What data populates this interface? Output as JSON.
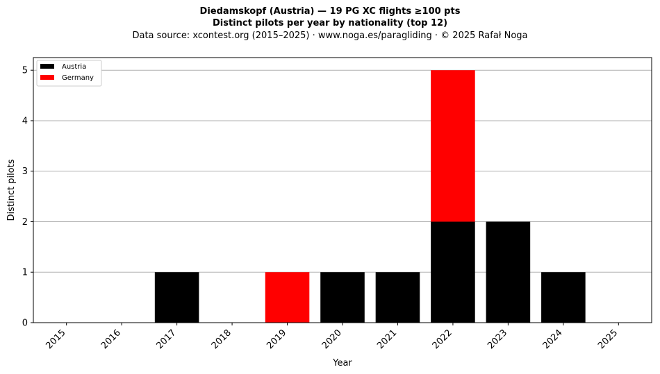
{
  "chart_data": {
    "type": "bar",
    "stacked": true,
    "title": "Diedamskopf (Austria)  —  19 PG XC flights ≥100 pts",
    "subtitle": "Distinct pilots per year by nationality (top 12)",
    "source_line": "Data source: xcontest.org (2015–2025)  ·  www.noga.es/paragliding  ·  © 2025 Rafał Noga",
    "xlabel": "Year",
    "ylabel": "Distinct pilots",
    "categories": [
      "2015",
      "2016",
      "2017",
      "2018",
      "2019",
      "2020",
      "2021",
      "2022",
      "2023",
      "2024",
      "2025"
    ],
    "series": [
      {
        "name": "Austria",
        "color": "#000000",
        "values": [
          0,
          0,
          1,
          0,
          0,
          1,
          1,
          2,
          2,
          1,
          0
        ]
      },
      {
        "name": "Germany",
        "color": "#ff0000",
        "values": [
          0,
          0,
          0,
          0,
          1,
          0,
          0,
          3,
          0,
          0,
          0
        ]
      }
    ],
    "ylim": [
      0,
      5.25
    ],
    "yticks": [
      0,
      1,
      2,
      3,
      4,
      5
    ],
    "grid": "y",
    "legend_position": "top-left"
  }
}
